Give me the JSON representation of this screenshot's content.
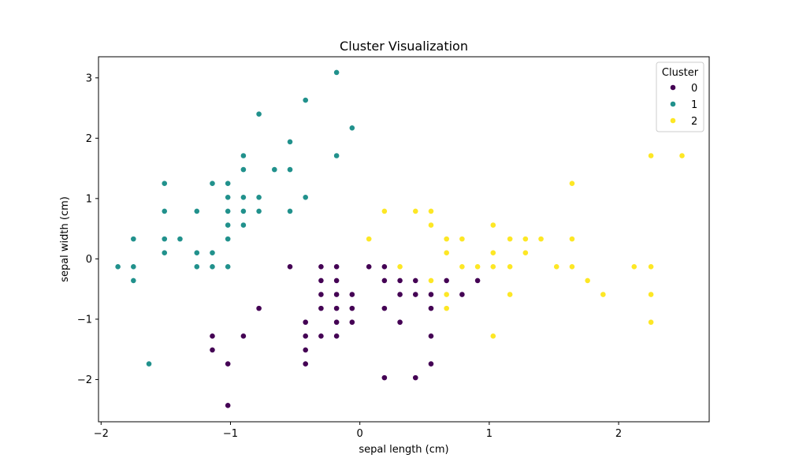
{
  "chart_data": {
    "type": "scatter",
    "title": "Cluster Visualization",
    "xlabel": "sepal length (cm)",
    "ylabel": "sepal width (cm)",
    "xlim": [
      -2.02,
      2.7
    ],
    "ylim": [
      -2.7,
      3.35
    ],
    "xticks": [
      -2,
      -1,
      0,
      1,
      2
    ],
    "yticks": [
      -2,
      -1,
      0,
      1,
      2,
      3
    ],
    "grid": false,
    "legend": {
      "title": "Cluster",
      "placement": "top-right"
    },
    "series": [
      {
        "name": "0",
        "color": "#440154",
        "points": [
          [
            -1.02,
            -2.43
          ],
          [
            -1.02,
            -1.74
          ],
          [
            -1.14,
            -1.28
          ],
          [
            -1.14,
            -1.51
          ],
          [
            -0.9,
            -1.28
          ],
          [
            -0.78,
            -0.82
          ],
          [
            -0.54,
            -0.13
          ],
          [
            -0.42,
            -1.05
          ],
          [
            -0.42,
            -1.28
          ],
          [
            -0.42,
            -1.51
          ],
          [
            -0.42,
            -1.74
          ],
          [
            -0.3,
            -0.13
          ],
          [
            -0.3,
            -0.36
          ],
          [
            -0.3,
            -0.59
          ],
          [
            -0.3,
            -0.82
          ],
          [
            -0.3,
            -1.28
          ],
          [
            -0.18,
            -0.13
          ],
          [
            -0.18,
            -0.36
          ],
          [
            -0.18,
            -0.59
          ],
          [
            -0.18,
            -0.82
          ],
          [
            -0.18,
            -1.05
          ],
          [
            -0.18,
            -1.28
          ],
          [
            -0.06,
            -0.59
          ],
          [
            -0.06,
            -0.82
          ],
          [
            -0.06,
            -1.05
          ],
          [
            0.07,
            -0.13
          ],
          [
            0.19,
            -0.13
          ],
          [
            0.19,
            -0.36
          ],
          [
            0.19,
            -0.82
          ],
          [
            0.19,
            -1.97
          ],
          [
            0.31,
            -0.36
          ],
          [
            0.31,
            -0.59
          ],
          [
            0.31,
            -1.05
          ],
          [
            0.43,
            -0.36
          ],
          [
            0.43,
            -0.59
          ],
          [
            0.43,
            -1.97
          ],
          [
            0.55,
            -0.36
          ],
          [
            0.55,
            -0.59
          ],
          [
            0.55,
            -0.82
          ],
          [
            0.55,
            -1.28
          ],
          [
            0.55,
            -1.74
          ],
          [
            0.67,
            -0.36
          ],
          [
            0.79,
            -0.59
          ],
          [
            0.91,
            -0.36
          ]
        ]
      },
      {
        "name": "1",
        "color": "#21918c",
        "points": [
          [
            -1.87,
            -0.13
          ],
          [
            -1.75,
            0.33
          ],
          [
            -1.75,
            -0.13
          ],
          [
            -1.75,
            -0.36
          ],
          [
            -1.63,
            -1.74
          ],
          [
            -1.51,
            1.25
          ],
          [
            -1.51,
            0.79
          ],
          [
            -1.51,
            0.33
          ],
          [
            -1.51,
            0.1
          ],
          [
            -1.39,
            0.33
          ],
          [
            -1.26,
            0.79
          ],
          [
            -1.26,
            0.1
          ],
          [
            -1.26,
            -0.13
          ],
          [
            -1.14,
            1.25
          ],
          [
            -1.14,
            0.1
          ],
          [
            -1.14,
            -0.13
          ],
          [
            -1.02,
            1.25
          ],
          [
            -1.02,
            1.02
          ],
          [
            -1.02,
            0.79
          ],
          [
            -1.02,
            0.56
          ],
          [
            -1.02,
            0.33
          ],
          [
            -1.02,
            -0.13
          ],
          [
            -0.9,
            1.71
          ],
          [
            -0.9,
            1.48
          ],
          [
            -0.9,
            1.02
          ],
          [
            -0.9,
            0.79
          ],
          [
            -0.9,
            0.56
          ],
          [
            -0.78,
            2.4
          ],
          [
            -0.78,
            1.02
          ],
          [
            -0.78,
            0.79
          ],
          [
            -0.66,
            1.48
          ],
          [
            -0.54,
            1.94
          ],
          [
            -0.54,
            1.48
          ],
          [
            -0.54,
            0.79
          ],
          [
            -0.42,
            2.63
          ],
          [
            -0.42,
            1.02
          ],
          [
            -0.18,
            3.09
          ],
          [
            -0.18,
            1.71
          ],
          [
            -0.06,
            2.17
          ]
        ]
      },
      {
        "name": "2",
        "color": "#fde725",
        "points": [
          [
            0.07,
            0.33
          ],
          [
            0.19,
            0.79
          ],
          [
            0.31,
            -0.13
          ],
          [
            0.43,
            0.79
          ],
          [
            0.55,
            0.79
          ],
          [
            0.55,
            0.56
          ],
          [
            0.55,
            -0.36
          ],
          [
            0.67,
            0.33
          ],
          [
            0.67,
            0.1
          ],
          [
            0.67,
            -0.59
          ],
          [
            0.67,
            -0.82
          ],
          [
            0.79,
            0.33
          ],
          [
            0.79,
            -0.13
          ],
          [
            0.91,
            -0.13
          ],
          [
            1.03,
            0.56
          ],
          [
            1.03,
            0.1
          ],
          [
            1.03,
            -0.13
          ],
          [
            1.03,
            -1.28
          ],
          [
            1.16,
            0.33
          ],
          [
            1.16,
            -0.13
          ],
          [
            1.16,
            -0.59
          ],
          [
            1.28,
            0.33
          ],
          [
            1.28,
            0.1
          ],
          [
            1.4,
            0.33
          ],
          [
            1.52,
            -0.13
          ],
          [
            1.64,
            1.25
          ],
          [
            1.64,
            0.33
          ],
          [
            1.64,
            -0.13
          ],
          [
            1.76,
            -0.36
          ],
          [
            1.88,
            -0.59
          ],
          [
            2.12,
            -0.13
          ],
          [
            2.25,
            1.71
          ],
          [
            2.25,
            -0.13
          ],
          [
            2.25,
            -0.59
          ],
          [
            2.25,
            -1.05
          ],
          [
            2.49,
            1.71
          ]
        ]
      }
    ]
  }
}
